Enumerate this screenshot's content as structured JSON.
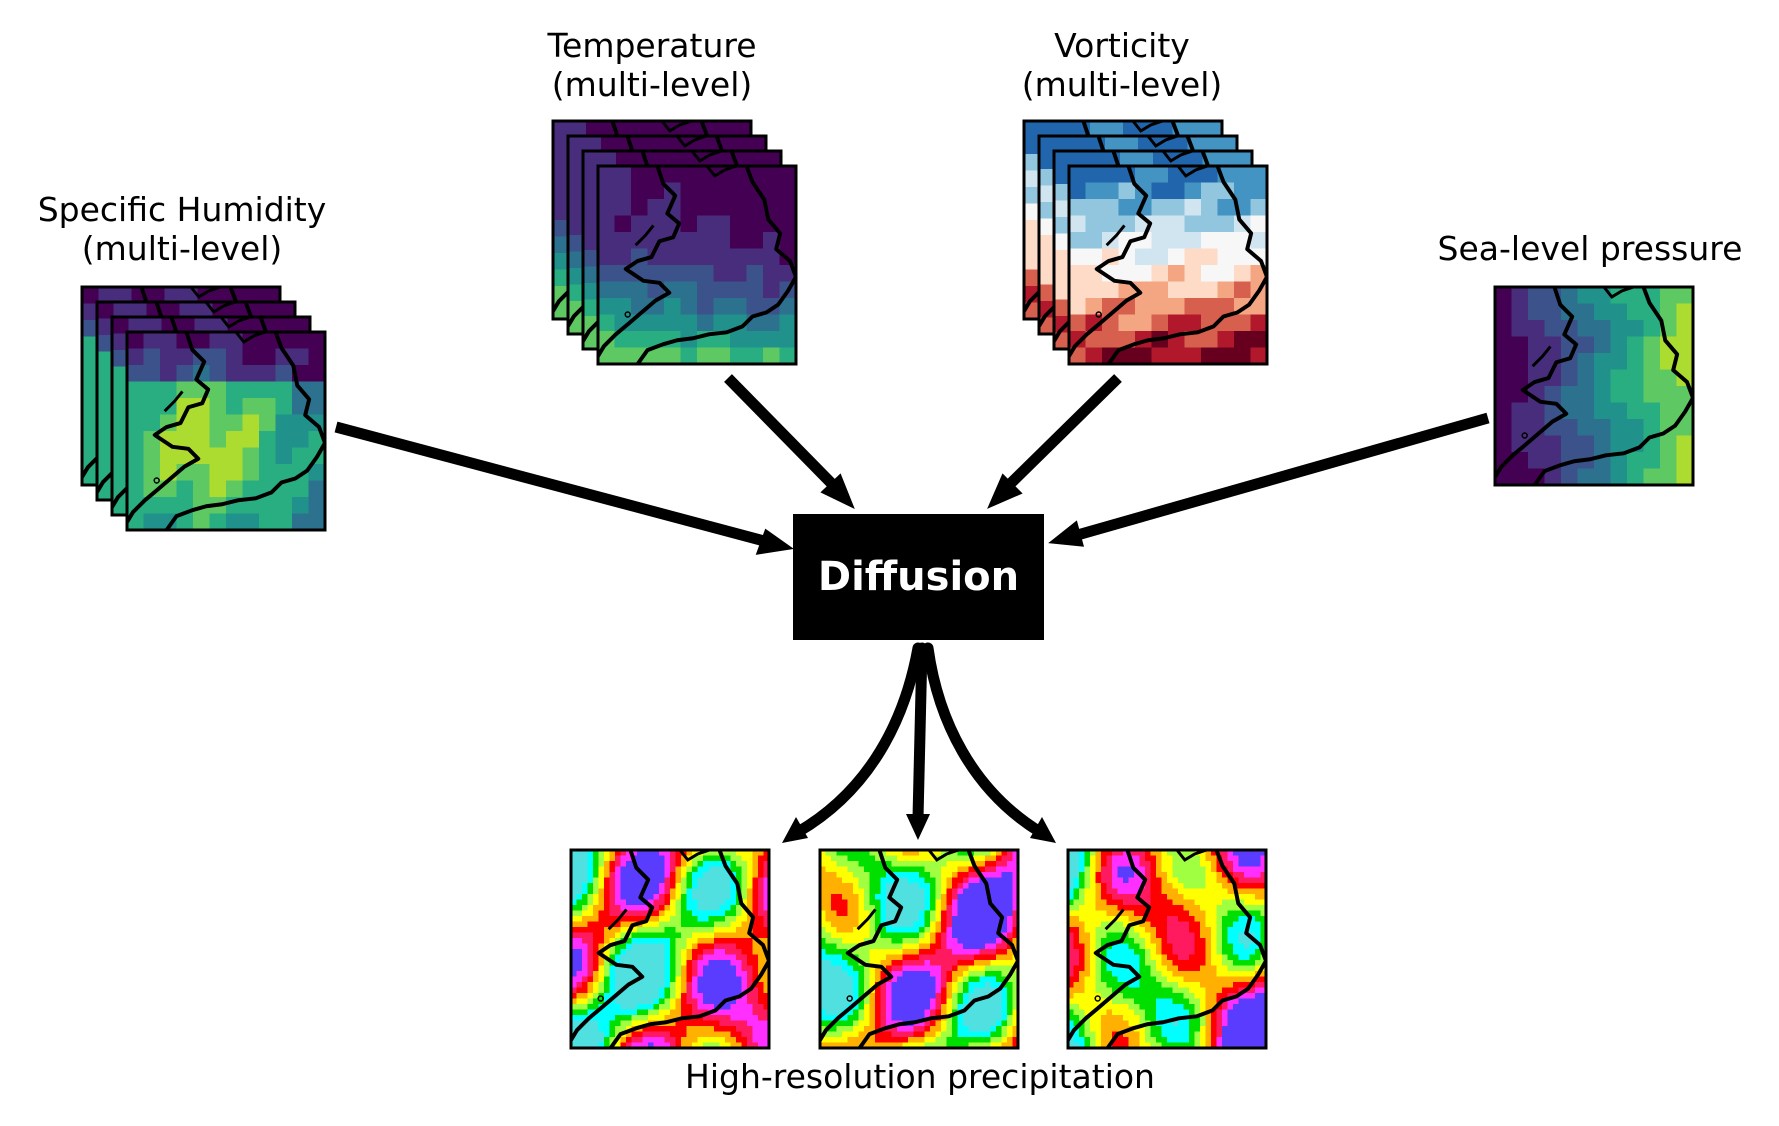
{
  "inputs": {
    "humidity": {
      "title_line1": "Specific Humidity",
      "title_line2": "(multi-level)"
    },
    "temperature": {
      "title_line1": "Temperature",
      "title_line2": "(multi-level)"
    },
    "vorticity": {
      "title_line1": "Vorticity",
      "title_line2": "(multi-level)"
    },
    "pressure": {
      "title_line1": "Sea-level pressure"
    }
  },
  "model": {
    "label": "Diffusion"
  },
  "output": {
    "label": "High-resolution precipitation",
    "sample_count": 3
  },
  "palettes": {
    "viridis": [
      "#440154",
      "#472d7b",
      "#3b528b",
      "#2c728e",
      "#21918c",
      "#28ae80",
      "#5ec962",
      "#addc30",
      "#fde725"
    ],
    "rdbu": [
      "#67001f",
      "#b2182b",
      "#d6604d",
      "#f4a582",
      "#fddbc7",
      "#f7f7f7",
      "#d1e5f0",
      "#92c5de",
      "#4393c3",
      "#2166ac"
    ],
    "precip": [
      "#5a3cff",
      "#ff30ff",
      "#ff1a60",
      "#ff0000",
      "#ffb000",
      "#ffff00",
      "#a0ff40",
      "#00e000",
      "#00ffff",
      "#50e0e0"
    ]
  }
}
